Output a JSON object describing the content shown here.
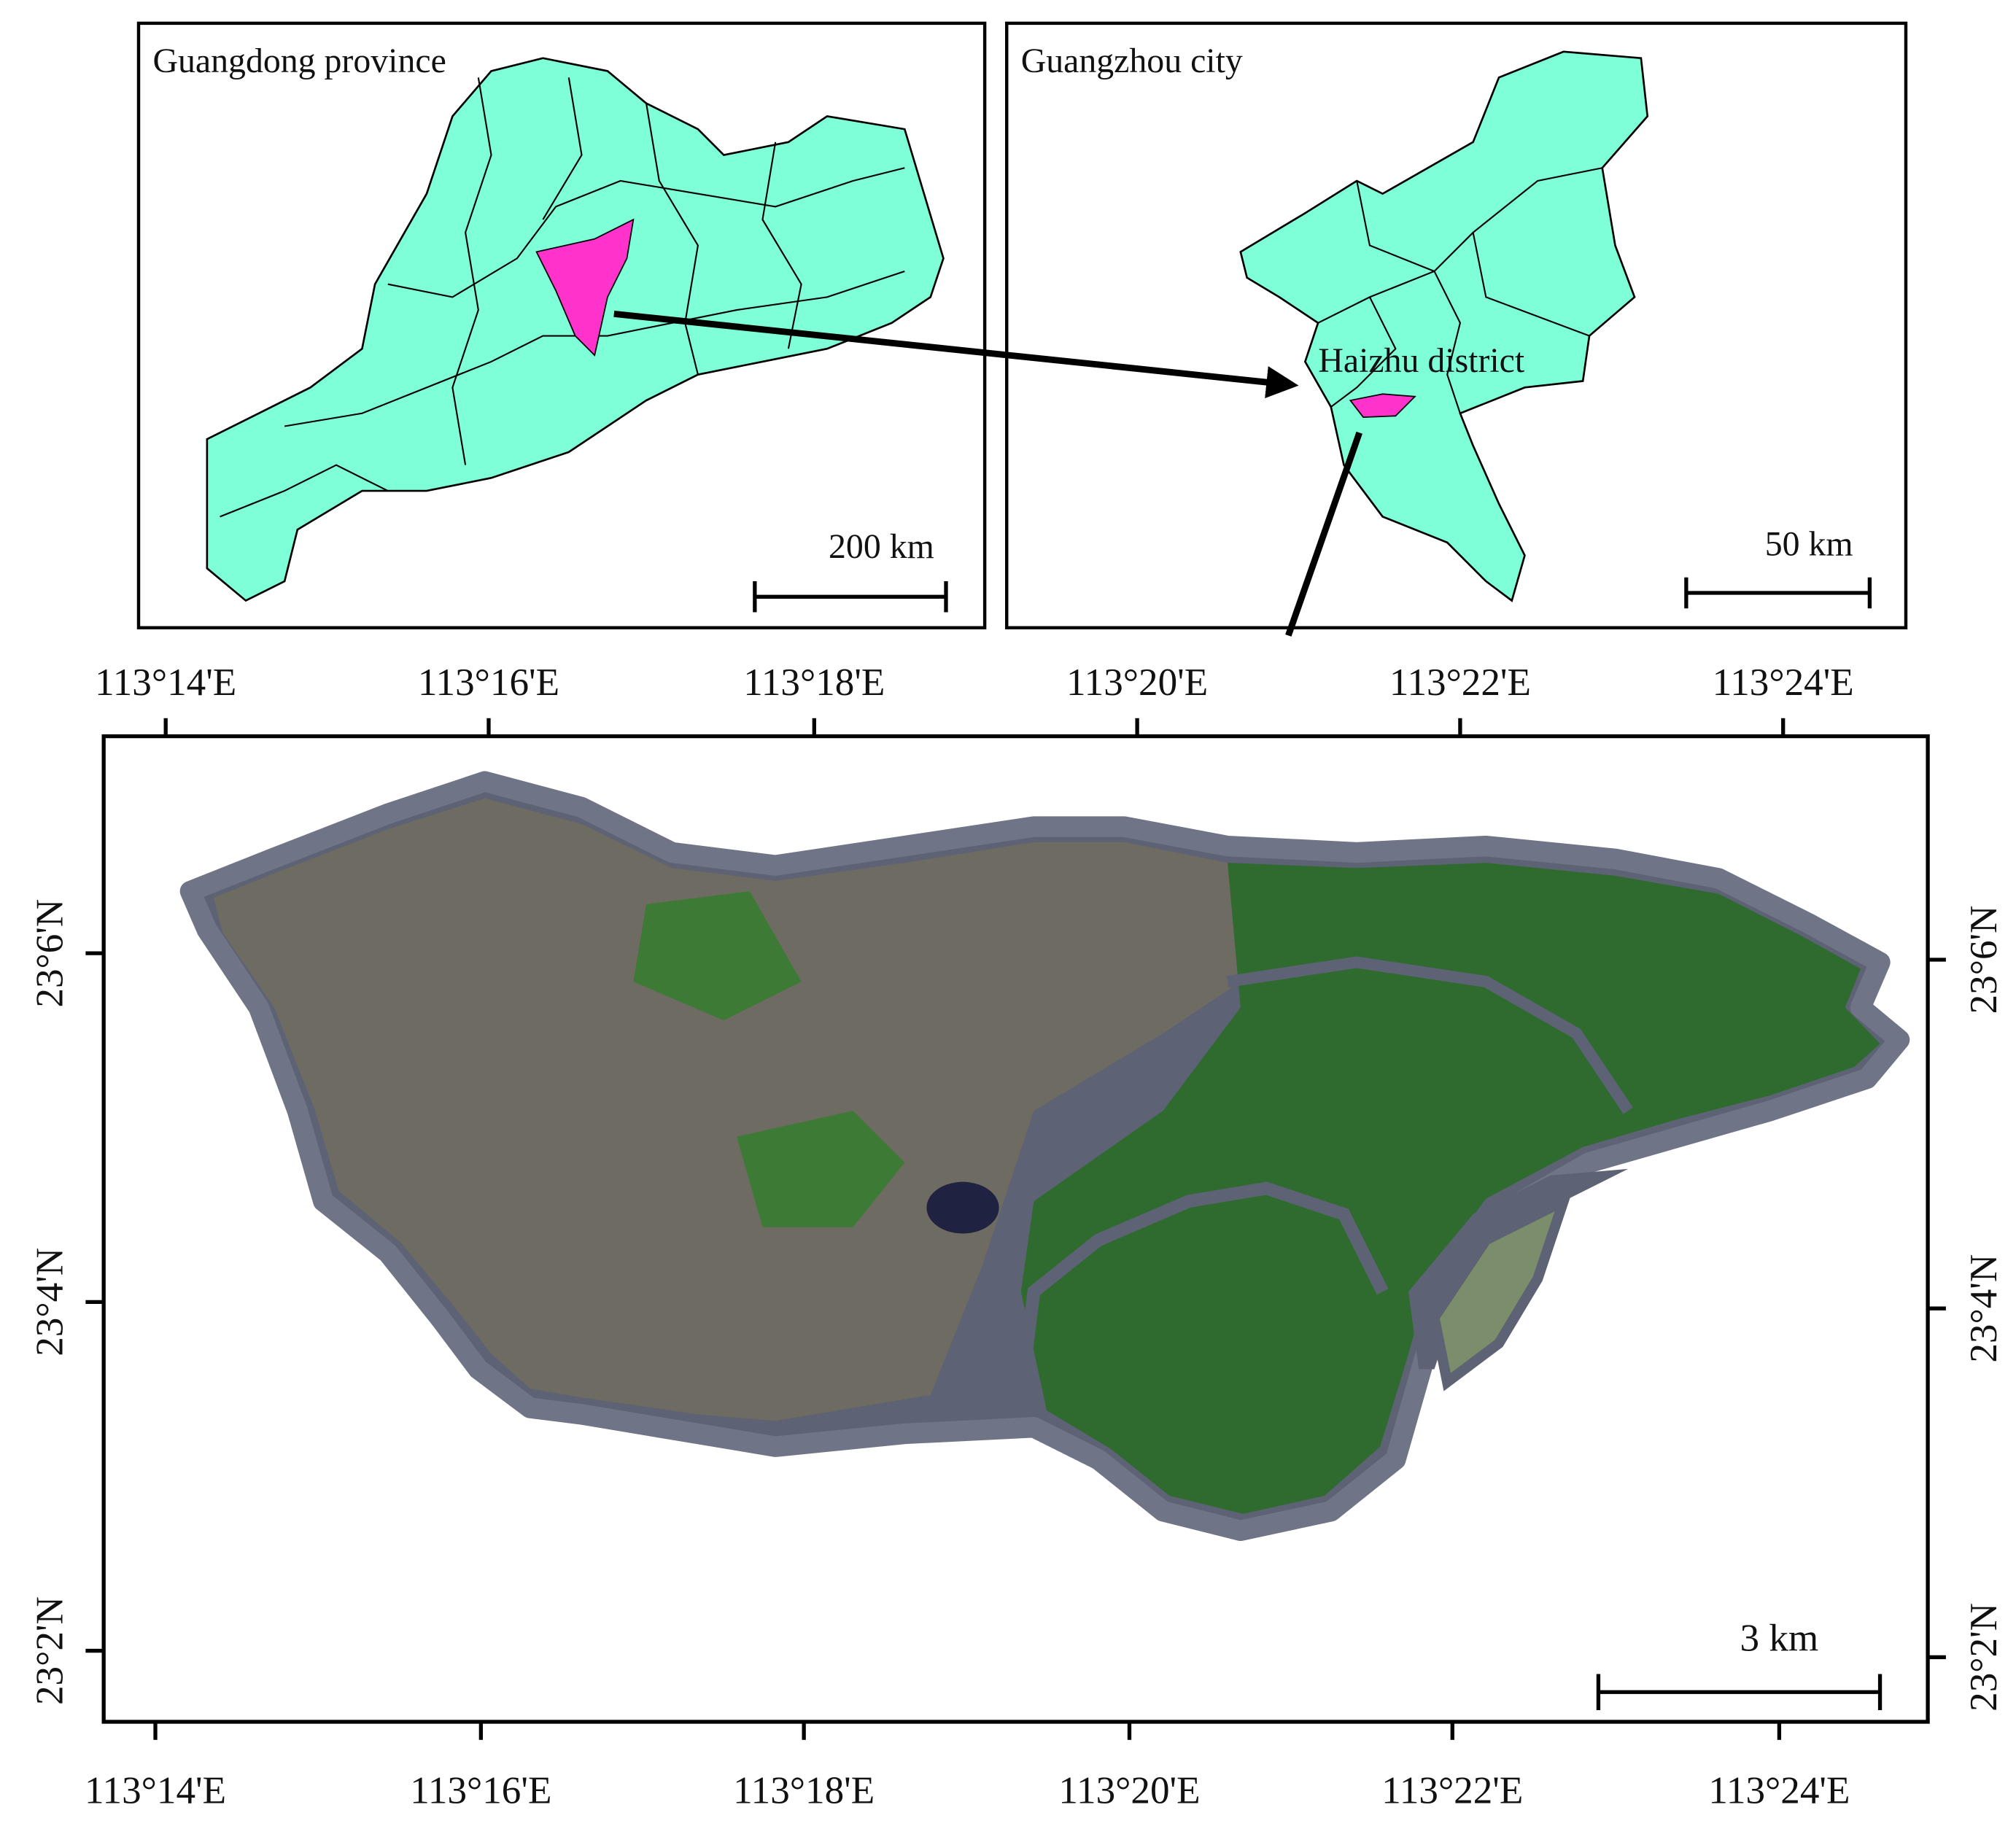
{
  "panels": {
    "guangdong": {
      "title": "Guangdong province",
      "scale_label": "200 km"
    },
    "guangzhou": {
      "title": "Guangzhou city",
      "district_label": "Haizhu district",
      "scale_label": "50 km"
    },
    "haizhu": {
      "scale_label": "3 km",
      "top_labels": [
        "113°14'E",
        "113°16'E",
        "113°18'E",
        "113°20'E",
        "113°22'E",
        "113°24'E"
      ],
      "bottom_labels": [
        "113°14'E",
        "113°16'E",
        "113°18'E",
        "113°20'E",
        "113°22'E",
        "113°24'E"
      ],
      "left_labels": [
        "23°6'N",
        "23°4'N",
        "23°2'N"
      ],
      "right_labels": [
        "23°6'N",
        "23°4'N",
        "23°2'N"
      ]
    }
  }
}
